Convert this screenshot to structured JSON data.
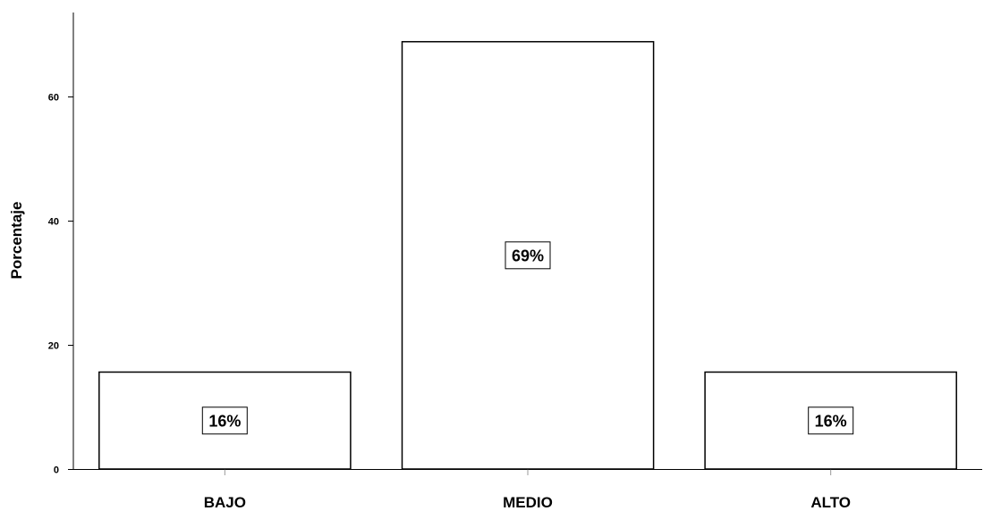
{
  "chart_data": {
    "type": "bar",
    "title": "",
    "xlabel": "",
    "ylabel": "Porcentaje",
    "categories": [
      "BAJO",
      "MEDIO",
      "ALTO"
    ],
    "values": [
      15.6,
      68.8,
      15.6
    ],
    "data_labels": [
      "16%",
      "69%",
      "16%"
    ],
    "ylim": [
      0,
      73.5
    ],
    "yticks": [
      0,
      20,
      40,
      60
    ],
    "ytick_labels": [
      "0",
      "20",
      "40",
      "60"
    ],
    "grid": false,
    "legend": "none",
    "bar_fill": "#ffffff",
    "bar_stroke": "#000000"
  }
}
